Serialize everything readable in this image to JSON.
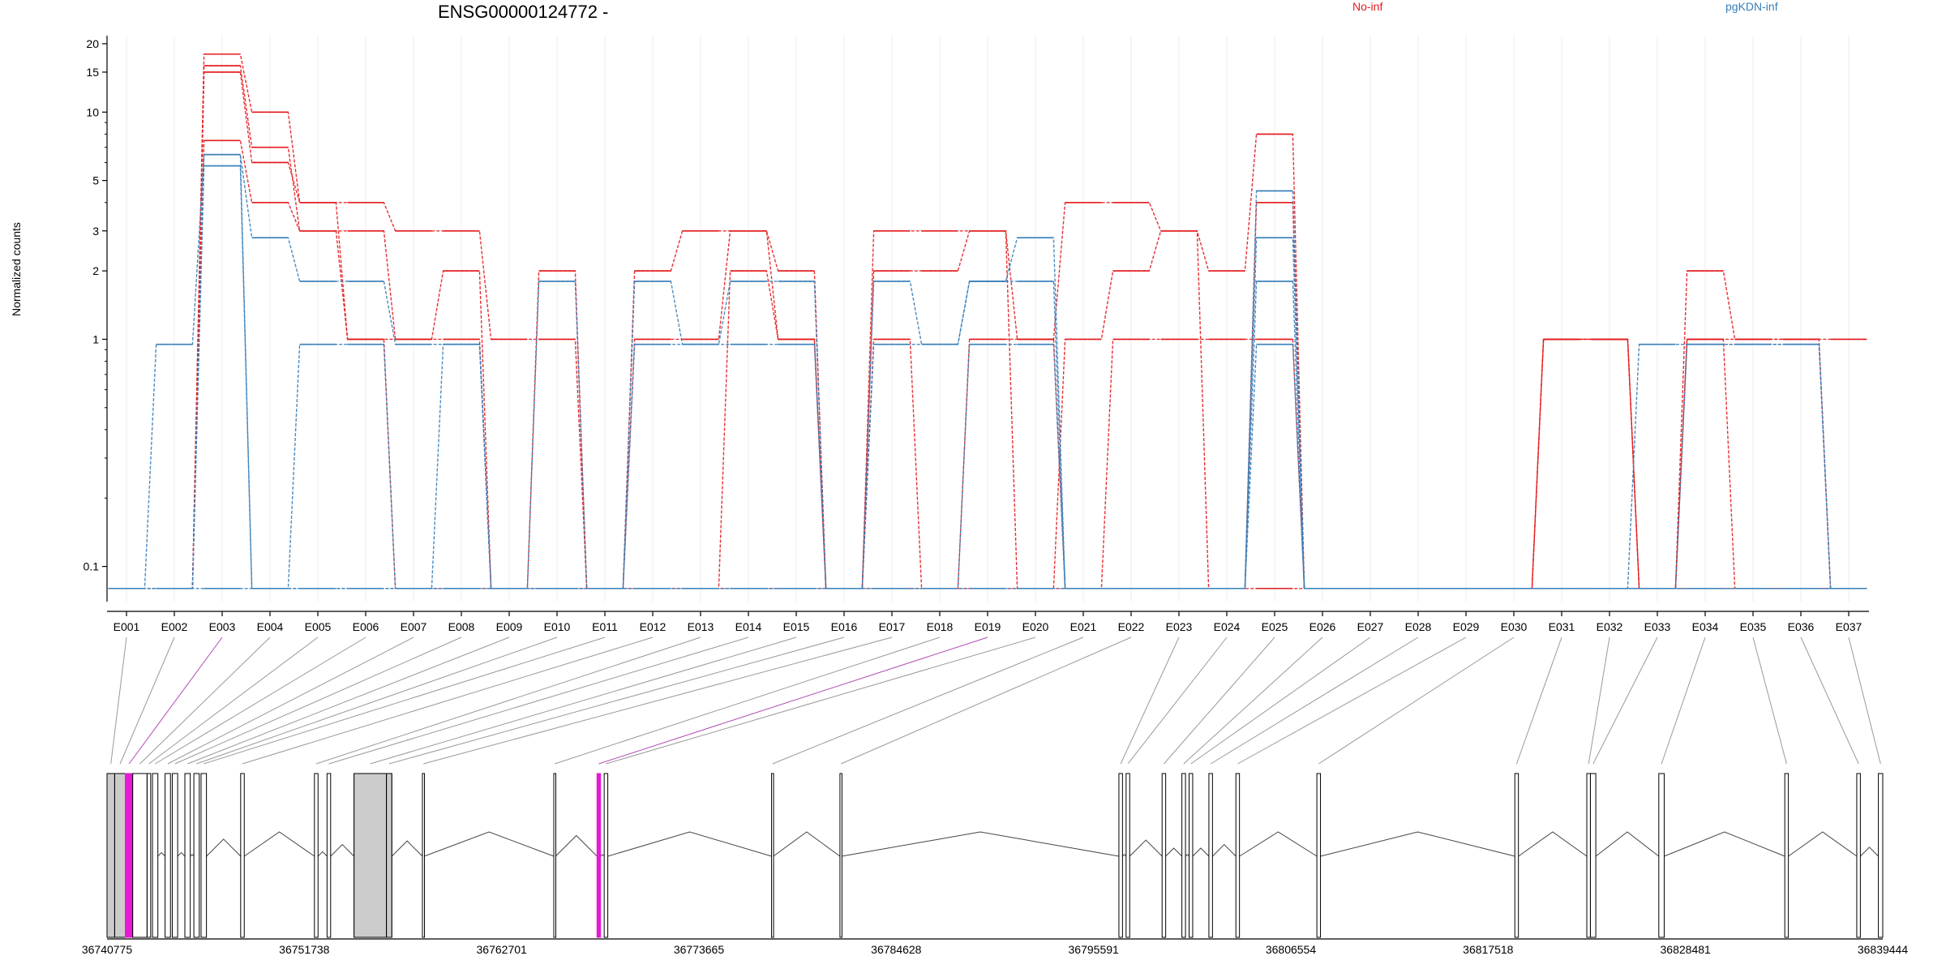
{
  "chart_data": {
    "type": "line",
    "title": "ENSG00000124772 -",
    "ylabel": "Normalized counts",
    "yscale": "log",
    "ylim": [
      0.07,
      21
    ],
    "yticks": [
      0.1,
      1,
      2,
      3,
      5,
      10,
      15,
      20
    ],
    "grid": true,
    "legend_position": "top-right",
    "categories": [
      "E001",
      "E002",
      "E003",
      "E004",
      "E005",
      "E006",
      "E007",
      "E008",
      "E009",
      "E010",
      "E011",
      "E012",
      "E013",
      "E014",
      "E015",
      "E016",
      "E017",
      "E018",
      "E019",
      "E020",
      "E021",
      "E022",
      "E023",
      "E024",
      "E025",
      "E026",
      "E027",
      "E028",
      "E029",
      "E030",
      "E031",
      "E032",
      "E033",
      "E034",
      "E035",
      "E036",
      "E037"
    ],
    "series": [
      {
        "name": "No-inf",
        "color": "#e41a1c",
        "replicate": 1,
        "values": [
          0.08,
          0.08,
          18,
          10,
          4,
          4,
          3,
          3,
          1,
          1,
          0.08,
          2,
          3,
          3,
          2,
          0.08,
          3,
          3,
          3,
          1,
          4,
          4,
          3,
          2,
          8,
          0.08,
          0.08,
          0.08,
          0.08,
          0.08,
          1,
          1,
          0.08,
          2,
          1,
          1,
          1
        ]
      },
      {
        "name": "No-inf",
        "color": "#e41a1c",
        "replicate": 2,
        "values": [
          0.08,
          0.08,
          16,
          7,
          3,
          3,
          1,
          2,
          0.08,
          2,
          0.08,
          1,
          1,
          3,
          1,
          0.08,
          2,
          2,
          3,
          0.08,
          1,
          2,
          3,
          0.08,
          4,
          0.08,
          0.08,
          0.08,
          0.08,
          0.08,
          1,
          1,
          0.08,
          1,
          1,
          1,
          0.08
        ]
      },
      {
        "name": "No-inf",
        "color": "#e41a1c",
        "replicate": 3,
        "values": [
          0.08,
          0.08,
          15,
          6,
          4,
          1,
          1,
          1,
          0.08,
          0.08,
          0.08,
          0.08,
          0.08,
          2,
          1,
          0.08,
          1,
          0.08,
          1,
          1,
          0.08,
          1,
          1,
          1,
          1,
          0.08,
          0.08,
          0.08,
          0.08,
          0.08,
          1,
          1,
          0.08,
          1,
          0.08,
          0.08,
          0.08
        ]
      },
      {
        "name": "No-inf",
        "color": "#e41a1c",
        "replicate": 4,
        "values": [
          0.08,
          0.08,
          7.5,
          4,
          3,
          1,
          0.08,
          0.08,
          0.08,
          0.08,
          0.08,
          0.08,
          0.08,
          0.08,
          0.08,
          0.08,
          0.08,
          0.08,
          0.08,
          0.08,
          0.08,
          0.08,
          0.08,
          0.08,
          0.08,
          0.08,
          0.08,
          0.08,
          0.08,
          0.08,
          0.08,
          0.08,
          0.08,
          0.08,
          0.08,
          0.08,
          0.08
        ]
      },
      {
        "name": "pgKDN-inf",
        "color": "#377eb8",
        "replicate": 1,
        "values": [
          0.08,
          0.95,
          6.5,
          2.8,
          1.8,
          1.8,
          0.95,
          0.95,
          0.08,
          1.8,
          0.08,
          1.8,
          0.95,
          1.8,
          1.8,
          0.08,
          1.8,
          0.95,
          1.8,
          2.8,
          0.08,
          0.08,
          0.08,
          0.08,
          4.5,
          0.08,
          0.08,
          0.08,
          0.08,
          0.08,
          0.08,
          0.08,
          0.95,
          0.95,
          0.95,
          0.95,
          0.08
        ]
      },
      {
        "name": "pgKDN-inf",
        "color": "#377eb8",
        "replicate": 2,
        "values": [
          0.08,
          0.08,
          6.5,
          0.08,
          0.95,
          0.95,
          0.08,
          0.95,
          0.08,
          0.08,
          0.08,
          0.95,
          0.95,
          0.95,
          0.95,
          0.08,
          0.95,
          0.95,
          1.8,
          1.8,
          0.08,
          0.08,
          0.08,
          0.08,
          2.8,
          0.08,
          0.08,
          0.08,
          0.08,
          0.08,
          0.08,
          0.08,
          0.08,
          0.95,
          0.95,
          0.95,
          0.08
        ]
      },
      {
        "name": "pgKDN-inf",
        "color": "#377eb8",
        "replicate": 3,
        "values": [
          0.08,
          0.08,
          5.8,
          0.08,
          0.08,
          0.08,
          0.08,
          0.08,
          0.08,
          0.08,
          0.08,
          0.08,
          0.08,
          0.08,
          0.08,
          0.08,
          0.08,
          0.08,
          0.95,
          0.95,
          0.08,
          0.08,
          0.08,
          0.08,
          1.8,
          0.08,
          0.08,
          0.08,
          0.08,
          0.08,
          0.08,
          0.08,
          0.08,
          0.08,
          0.08,
          0.08,
          0.08
        ]
      },
      {
        "name": "pgKDN-inf",
        "color": "#377eb8",
        "replicate": 4,
        "values": [
          0.08,
          0.08,
          0.08,
          0.08,
          0.08,
          0.08,
          0.08,
          0.08,
          0.08,
          0.08,
          0.08,
          0.08,
          0.08,
          0.08,
          0.08,
          0.08,
          0.08,
          0.08,
          0.08,
          0.08,
          0.08,
          0.08,
          0.08,
          0.08,
          0.95,
          0.08,
          0.08,
          0.08,
          0.08,
          0.08,
          0.08,
          0.08,
          0.08,
          0.08,
          0.08,
          0.08,
          0.08
        ]
      }
    ],
    "legend": [
      {
        "label": "No-inf",
        "color": "#e41a1c"
      },
      {
        "label": "pgKDN-inf",
        "color": "#377eb8"
      }
    ],
    "gene_model": {
      "coordinate_range": [
        36740775,
        36839444
      ],
      "coordinate_ticks": [
        "36740775",
        "36751738",
        "36762701",
        "36773665",
        "36784628",
        "36795591",
        "36806554",
        "36817518",
        "36828481",
        "36839444"
      ],
      "exon_genomic_start": [
        36740775,
        36741200,
        36741800,
        36742200,
        36743000,
        36743300,
        36744000,
        36744400,
        36745100,
        36745600,
        36746000,
        36748200,
        36752300,
        36753000,
        36754500,
        36756300,
        36758300,
        36765600,
        36768000,
        36768400,
        36777700,
        36781500,
        36797000,
        36797400,
        36799400,
        36800500,
        36800900,
        36802000,
        36803500,
        36808000,
        36819000,
        36823000,
        36823200,
        36827000,
        36834000,
        36838000,
        36839200
      ],
      "exon_genomic_end": [
        36741200,
        36741800,
        36742200,
        36743000,
        36743200,
        36743600,
        36744300,
        36744700,
        36745400,
        36745900,
        36746300,
        36748400,
        36752500,
        36753200,
        36756300,
        36756600,
        36758400,
        36765700,
        36768200,
        36768600,
        36777800,
        36781600,
        36797200,
        36797600,
        36799600,
        36800700,
        36801100,
        36802200,
        36803700,
        36808200,
        36819200,
        36823200,
        36823500,
        36827300,
        36834200,
        36838200,
        36839444
      ],
      "highlighted_exons": [
        "E003",
        "E019"
      ],
      "highlight_color": "#e41ad6",
      "noncoding_color": "#cccccc"
    }
  }
}
